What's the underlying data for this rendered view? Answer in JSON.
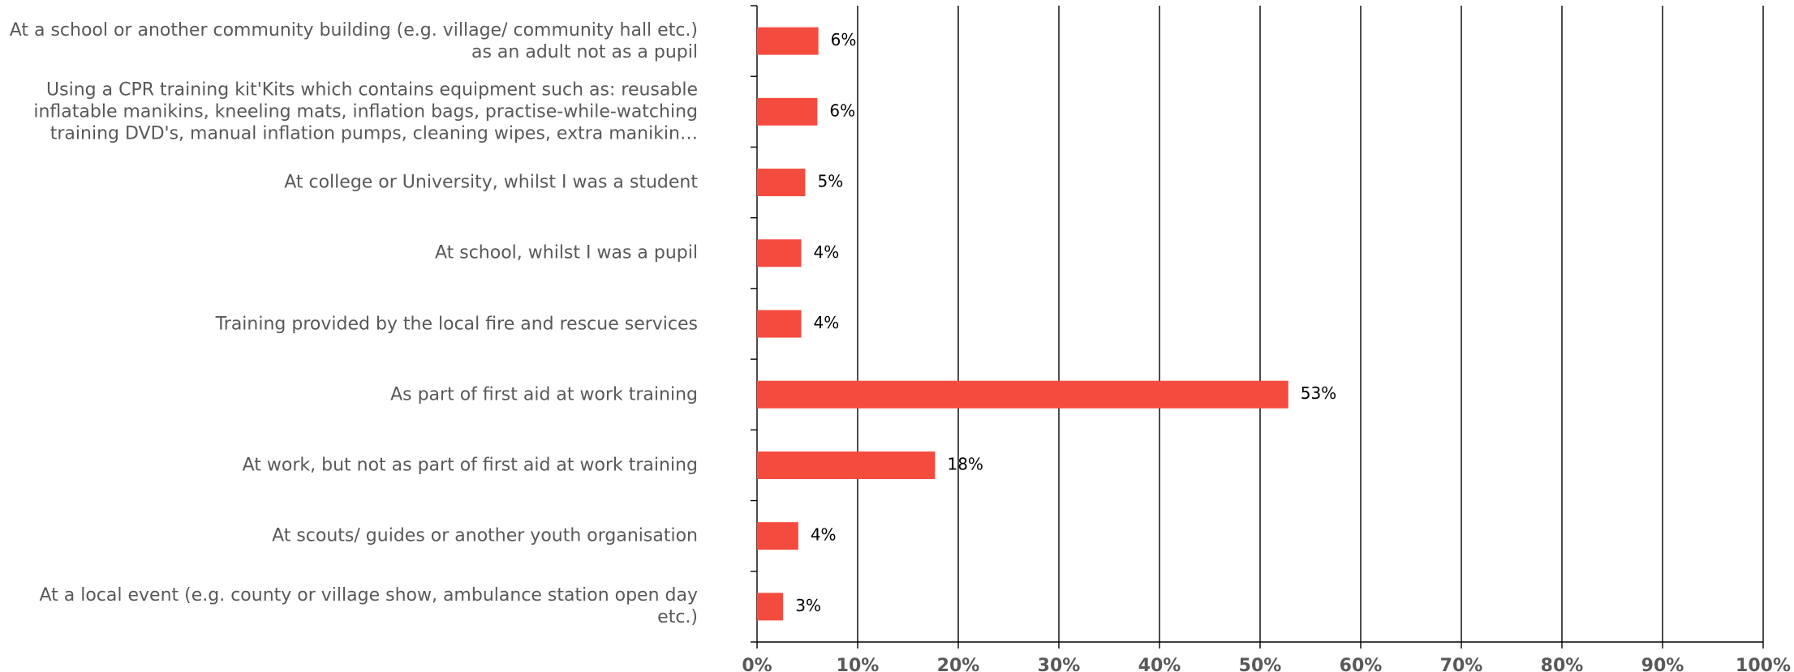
{
  "chart_data": {
    "type": "barh",
    "categories": [
      "At a school or another community building (e.g. village/ community hall etc.)\nas an adult not as a pupil",
      "Using a CPR training kit'Kits which contains equipment such as: reusable\ninflatable manikins, kneeling mats, inflation bags, practise-while-watching\ntraining DVD's, manual inflation pumps, cleaning wipes, extra manikin…",
      "At college or University, whilst I was a student",
      "At school, whilst I was a pupil",
      "Training provided by the local fire and rescue services",
      "As part of first aid at work training",
      "At work, but not as part of first aid at work training",
      "At scouts/ guides or another youth organisation",
      "At a local event (e.g. county or village show, ambulance station open day\netc.)"
    ],
    "values": [
      6.1,
      6.0,
      4.8,
      4.4,
      4.4,
      52.8,
      17.7,
      4.1,
      2.6
    ],
    "value_labels": [
      "6%",
      "6%",
      "5%",
      "4%",
      "4%",
      "53%",
      "18%",
      "4%",
      "3%"
    ],
    "color": "#f44b3f",
    "xlim": [
      0,
      100
    ],
    "xticks": [
      {
        "value": 0,
        "label": "0%"
      },
      {
        "value": 10,
        "label": "10%"
      },
      {
        "value": 20,
        "label": "20%"
      },
      {
        "value": 30,
        "label": "30%"
      },
      {
        "value": 40,
        "label": "40%"
      },
      {
        "value": 50,
        "label": "50%"
      },
      {
        "value": 60,
        "label": "60%"
      },
      {
        "value": 70,
        "label": "70%"
      },
      {
        "value": 80,
        "label": "80%"
      },
      {
        "value": 90,
        "label": "90%"
      },
      {
        "value": 100,
        "label": "100%"
      }
    ],
    "grid": true
  }
}
